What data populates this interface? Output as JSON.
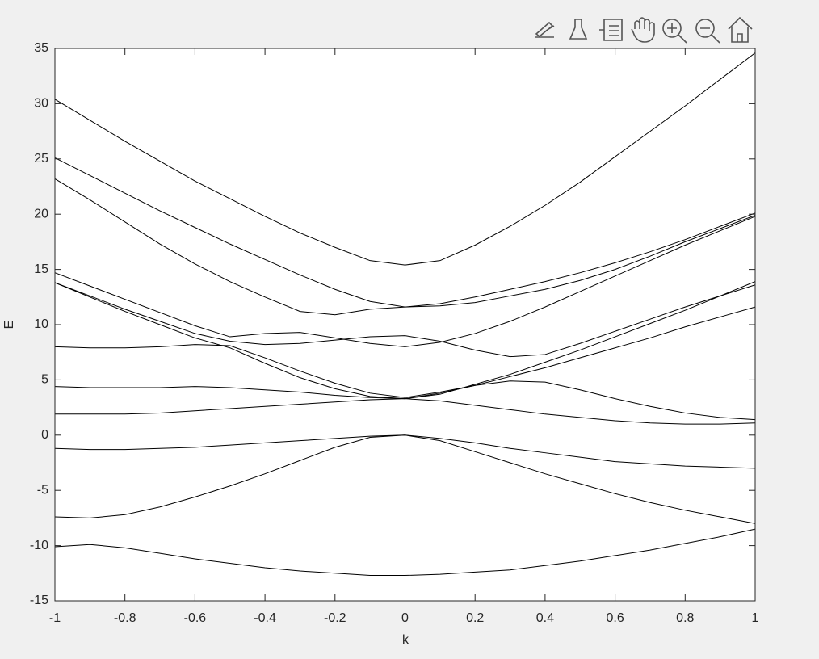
{
  "chart_data": {
    "type": "line",
    "xlabel": "k",
    "ylabel": "E",
    "color": "#000000",
    "x": [
      -1,
      -0.9,
      -0.8,
      -0.7,
      -0.6,
      -0.5,
      -0.4,
      -0.3,
      -0.2,
      -0.1,
      0,
      0.1,
      0.2,
      0.3,
      0.4,
      0.5,
      0.6,
      0.7,
      0.8,
      0.9,
      1
    ],
    "series": [
      {
        "values": [
          30.4,
          28.5,
          26.6,
          24.8,
          23.0,
          21.4,
          19.8,
          18.3,
          17.0,
          15.8,
          15.4,
          15.8,
          17.2,
          18.9,
          20.8,
          22.9,
          25.2,
          27.5,
          29.8,
          32.2,
          34.6
        ]
      },
      {
        "values": [
          25.1,
          23.5,
          21.9,
          20.3,
          18.8,
          17.3,
          15.9,
          14.5,
          13.2,
          12.1,
          11.6,
          11.9,
          12.5,
          13.2,
          13.9,
          14.7,
          15.6,
          16.6,
          17.7,
          18.9,
          20.1
        ]
      },
      {
        "values": [
          23.2,
          21.3,
          19.3,
          17.3,
          15.5,
          13.9,
          12.5,
          11.2,
          10.9,
          11.4,
          11.6,
          11.7,
          12.0,
          12.6,
          13.2,
          14.0,
          15.0,
          16.2,
          17.5,
          18.7,
          19.9
        ]
      },
      {
        "values": [
          14.7,
          13.5,
          12.3,
          11.1,
          9.9,
          8.9,
          9.2,
          9.3,
          8.8,
          8.3,
          8.0,
          8.4,
          9.2,
          10.3,
          11.6,
          13.0,
          14.4,
          15.8,
          17.2,
          18.5,
          19.8
        ]
      },
      {
        "values": [
          13.8,
          12.6,
          11.4,
          10.3,
          9.2,
          8.5,
          8.2,
          8.3,
          8.6,
          8.9,
          9.0,
          8.5,
          7.7,
          7.1,
          7.3,
          8.3,
          9.4,
          10.5,
          11.6,
          12.6,
          13.6
        ]
      },
      {
        "values": [
          13.8,
          12.5,
          11.2,
          10.0,
          8.8,
          7.9,
          6.5,
          5.2,
          4.2,
          3.5,
          3.3,
          3.8,
          4.5,
          5.3,
          6.1,
          7.0,
          7.9,
          8.8,
          9.8,
          10.7,
          11.6
        ]
      },
      {
        "values": [
          8.0,
          7.9,
          7.9,
          8.0,
          8.2,
          8.1,
          7.0,
          5.8,
          4.7,
          3.8,
          3.4,
          3.9,
          4.5,
          4.9,
          4.8,
          4.1,
          3.3,
          2.6,
          2.0,
          1.6,
          1.4
        ]
      },
      {
        "values": [
          4.4,
          4.3,
          4.3,
          4.3,
          4.4,
          4.3,
          4.1,
          3.9,
          3.6,
          3.4,
          3.3,
          3.7,
          4.6,
          5.5,
          6.6,
          7.7,
          8.9,
          10.1,
          11.3,
          12.6,
          13.9
        ]
      },
      {
        "values": [
          1.9,
          1.9,
          1.9,
          2.0,
          2.2,
          2.4,
          2.6,
          2.8,
          3.0,
          3.2,
          3.3,
          3.1,
          2.7,
          2.3,
          1.9,
          1.6,
          1.3,
          1.1,
          1.0,
          1.0,
          1.1
        ]
      },
      {
        "values": [
          -1.2,
          -1.3,
          -1.3,
          -1.2,
          -1.1,
          -0.9,
          -0.7,
          -0.5,
          -0.3,
          -0.1,
          0.0,
          -0.3,
          -0.7,
          -1.2,
          -1.6,
          -2.0,
          -2.4,
          -2.6,
          -2.8,
          -2.9,
          -3.0
        ]
      },
      {
        "values": [
          -7.4,
          -7.5,
          -7.2,
          -6.5,
          -5.6,
          -4.6,
          -3.5,
          -2.3,
          -1.1,
          -0.2,
          0.0,
          -0.5,
          -1.5,
          -2.5,
          -3.5,
          -4.4,
          -5.3,
          -6.1,
          -6.8,
          -7.4,
          -8.0
        ]
      },
      {
        "values": [
          -10.1,
          -9.9,
          -10.2,
          -10.7,
          -11.2,
          -11.6,
          -12.0,
          -12.3,
          -12.5,
          -12.7,
          -12.7,
          -12.6,
          -12.4,
          -12.2,
          -11.8,
          -11.4,
          -10.9,
          -10.4,
          -9.8,
          -9.2,
          -8.5
        ]
      }
    ],
    "xlim": [
      -1,
      1
    ],
    "xticks": [
      -1,
      -0.8,
      -0.6,
      -0.4,
      -0.2,
      0,
      0.2,
      0.4,
      0.6,
      0.8,
      1
    ],
    "ylim": [
      -15,
      35
    ],
    "yticks": [
      -15,
      -10,
      -5,
      0,
      5,
      10,
      15,
      20,
      25,
      30,
      35
    ]
  }
}
